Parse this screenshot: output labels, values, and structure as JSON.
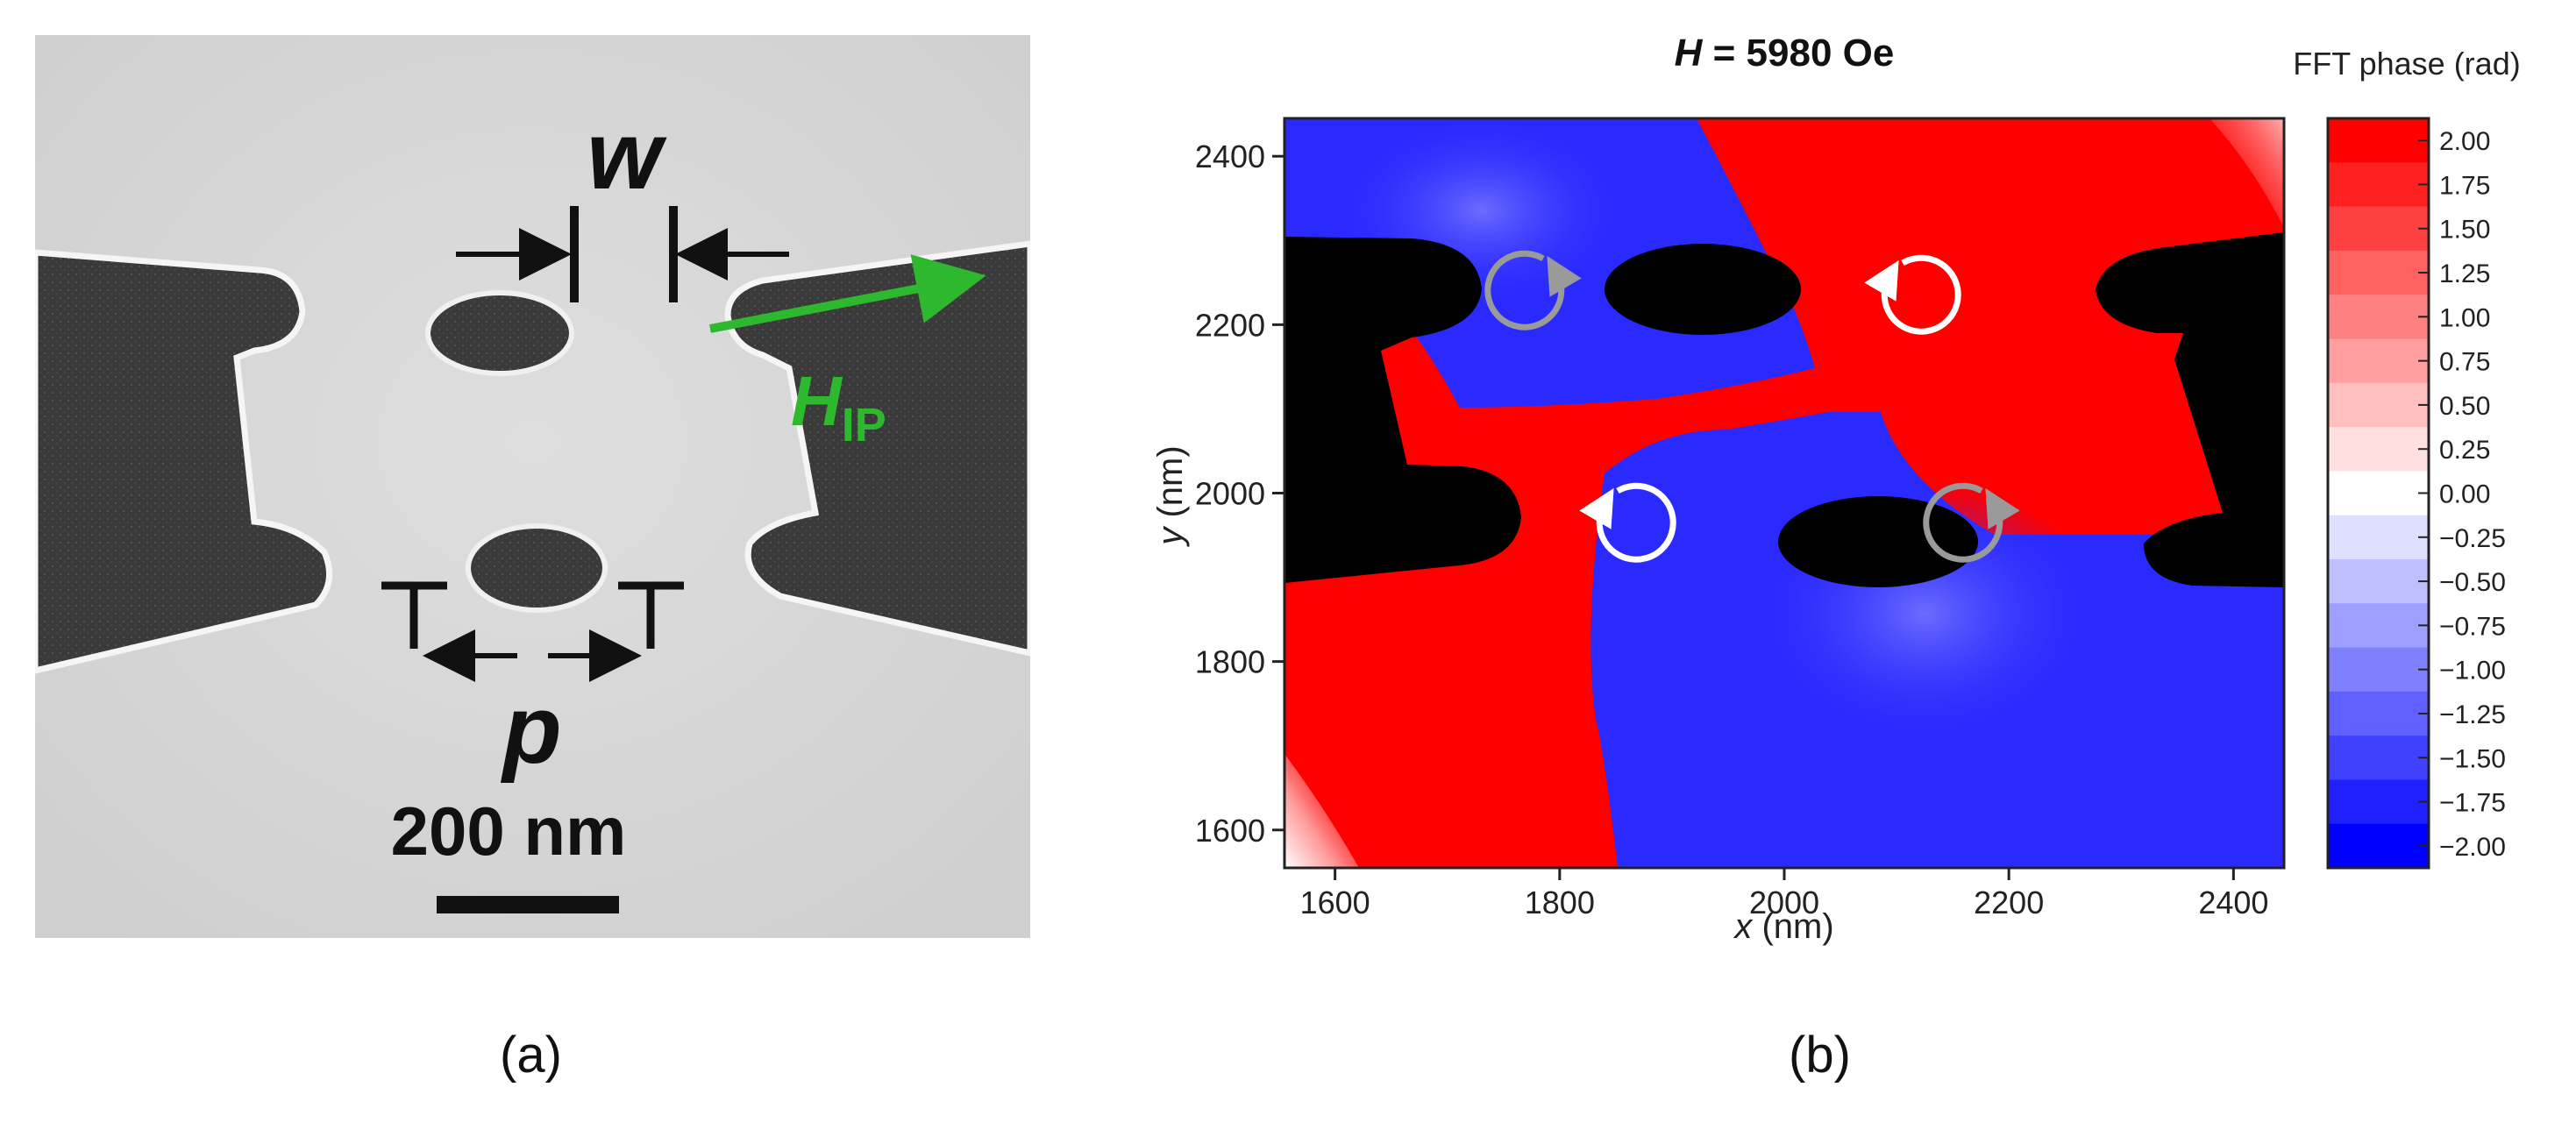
{
  "panel_a": {
    "label_w": "w",
    "label_p": "p",
    "label_field_main": "H",
    "label_field_sub": "IP",
    "scale_bar": "200 nm",
    "caption": "(a)"
  },
  "panel_b": {
    "title_main": "H",
    "title_rest": " = 5980 Oe",
    "caption": "(b)"
  },
  "chart_data": {
    "type": "heatmap",
    "title": "H = 5980 Oe",
    "xlabel": "x (nm)",
    "xlabel_var": "x",
    "xlabel_unit": " (nm)",
    "ylabel": "y (nm)",
    "ylabel_var": "y",
    "ylabel_unit": " (nm)",
    "xlim": [
      1555,
      2445
    ],
    "ylim": [
      1555,
      2445
    ],
    "x_ticks": [
      1600,
      1800,
      2000,
      2200,
      2400
    ],
    "y_ticks": [
      1600,
      1800,
      2000,
      2200,
      2400
    ],
    "colorbar": {
      "label": "FFT phase (rad)",
      "range": [
        -2.0,
        2.0
      ],
      "ticks": [
        "2.00",
        "1.75",
        "1.50",
        "1.25",
        "1.00",
        "0.75",
        "0.50",
        "0.25",
        "0.00",
        "−0.25",
        "−0.50",
        "−0.75",
        "−1.00",
        "−1.25",
        "−1.50",
        "−1.75",
        "−2.00"
      ],
      "colors": [
        "#ff0000",
        "#ff2020",
        "#ff4040",
        "#ff6060",
        "#ff8080",
        "#ff9f9f",
        "#ffbfbf",
        "#ffdfdf",
        "#ffffff",
        "#dfdfff",
        "#bfbfff",
        "#9f9fff",
        "#8080ff",
        "#6060ff",
        "#4040ff",
        "#2020ff",
        "#0000ff"
      ]
    },
    "regions": [
      {
        "name": "upper-left",
        "phase": "-2.00",
        "circulation": "counterclockwise"
      },
      {
        "name": "upper-right",
        "phase": "2.00",
        "circulation": "clockwise"
      },
      {
        "name": "lower-left",
        "phase": "2.00",
        "circulation": "clockwise"
      },
      {
        "name": "lower-right",
        "phase": "-2.00",
        "circulation": "counterclockwise"
      }
    ],
    "colors": {
      "positive": "#ff0000",
      "negative": "#2a2aff",
      "structure": "#000000",
      "arrow_white": "#ffffff",
      "arrow_grey": "#9a9a9a"
    }
  }
}
